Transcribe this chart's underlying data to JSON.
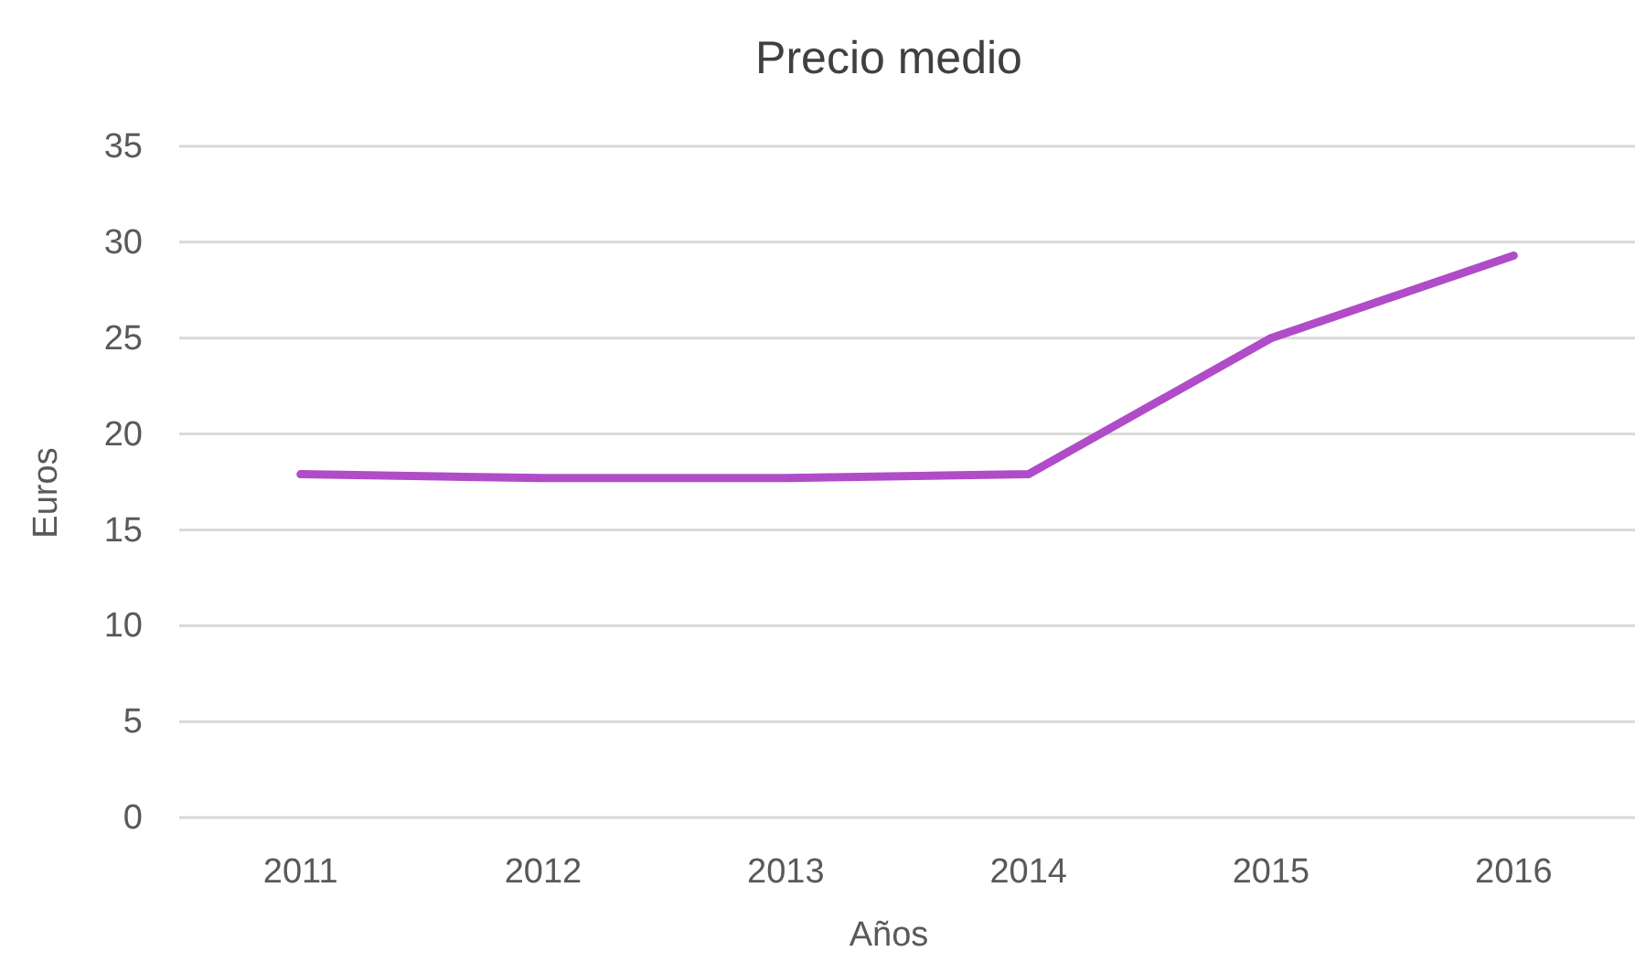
{
  "chart_data": {
    "type": "line",
    "title": "Precio medio",
    "xlabel": "Años",
    "ylabel": "Euros",
    "categories": [
      "2011",
      "2012",
      "2013",
      "2014",
      "2015",
      "2016"
    ],
    "series": [
      {
        "color": "#b04cc8",
        "values": [
          17.9,
          17.7,
          17.7,
          17.9,
          25.0,
          29.3
        ]
      }
    ],
    "ylim": [
      0,
      35
    ],
    "yticks": [
      0,
      5,
      10,
      15,
      20,
      25,
      30,
      35
    ],
    "grid": "y",
    "marker": "none",
    "line_style": "solid"
  }
}
